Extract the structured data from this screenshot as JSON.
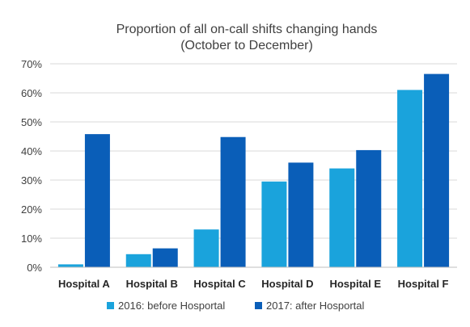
{
  "chart_data": {
    "type": "bar",
    "title": "Proportion of all on-call shifts changing hands",
    "subtitle": "(October to December)",
    "categories": [
      "Hospital A",
      "Hospital B",
      "Hospital C",
      "Hospital D",
      "Hospital E",
      "Hospital F"
    ],
    "series": [
      {
        "name": "2016: before Hosportal",
        "color": "#1aa3dc",
        "values": [
          1.0,
          4.5,
          13.0,
          29.5,
          34.0,
          61.0
        ]
      },
      {
        "name": "2017: after Hosportal",
        "color": "#0a5eb8",
        "values": [
          45.8,
          6.5,
          44.8,
          36.0,
          40.3,
          66.5
        ]
      }
    ],
    "y_ticks": [
      "0%",
      "10%",
      "20%",
      "30%",
      "40%",
      "50%",
      "60%",
      "70%"
    ],
    "ylim": [
      0,
      70
    ],
    "y_unit": "%",
    "grid": true,
    "legend_position": "bottom"
  }
}
